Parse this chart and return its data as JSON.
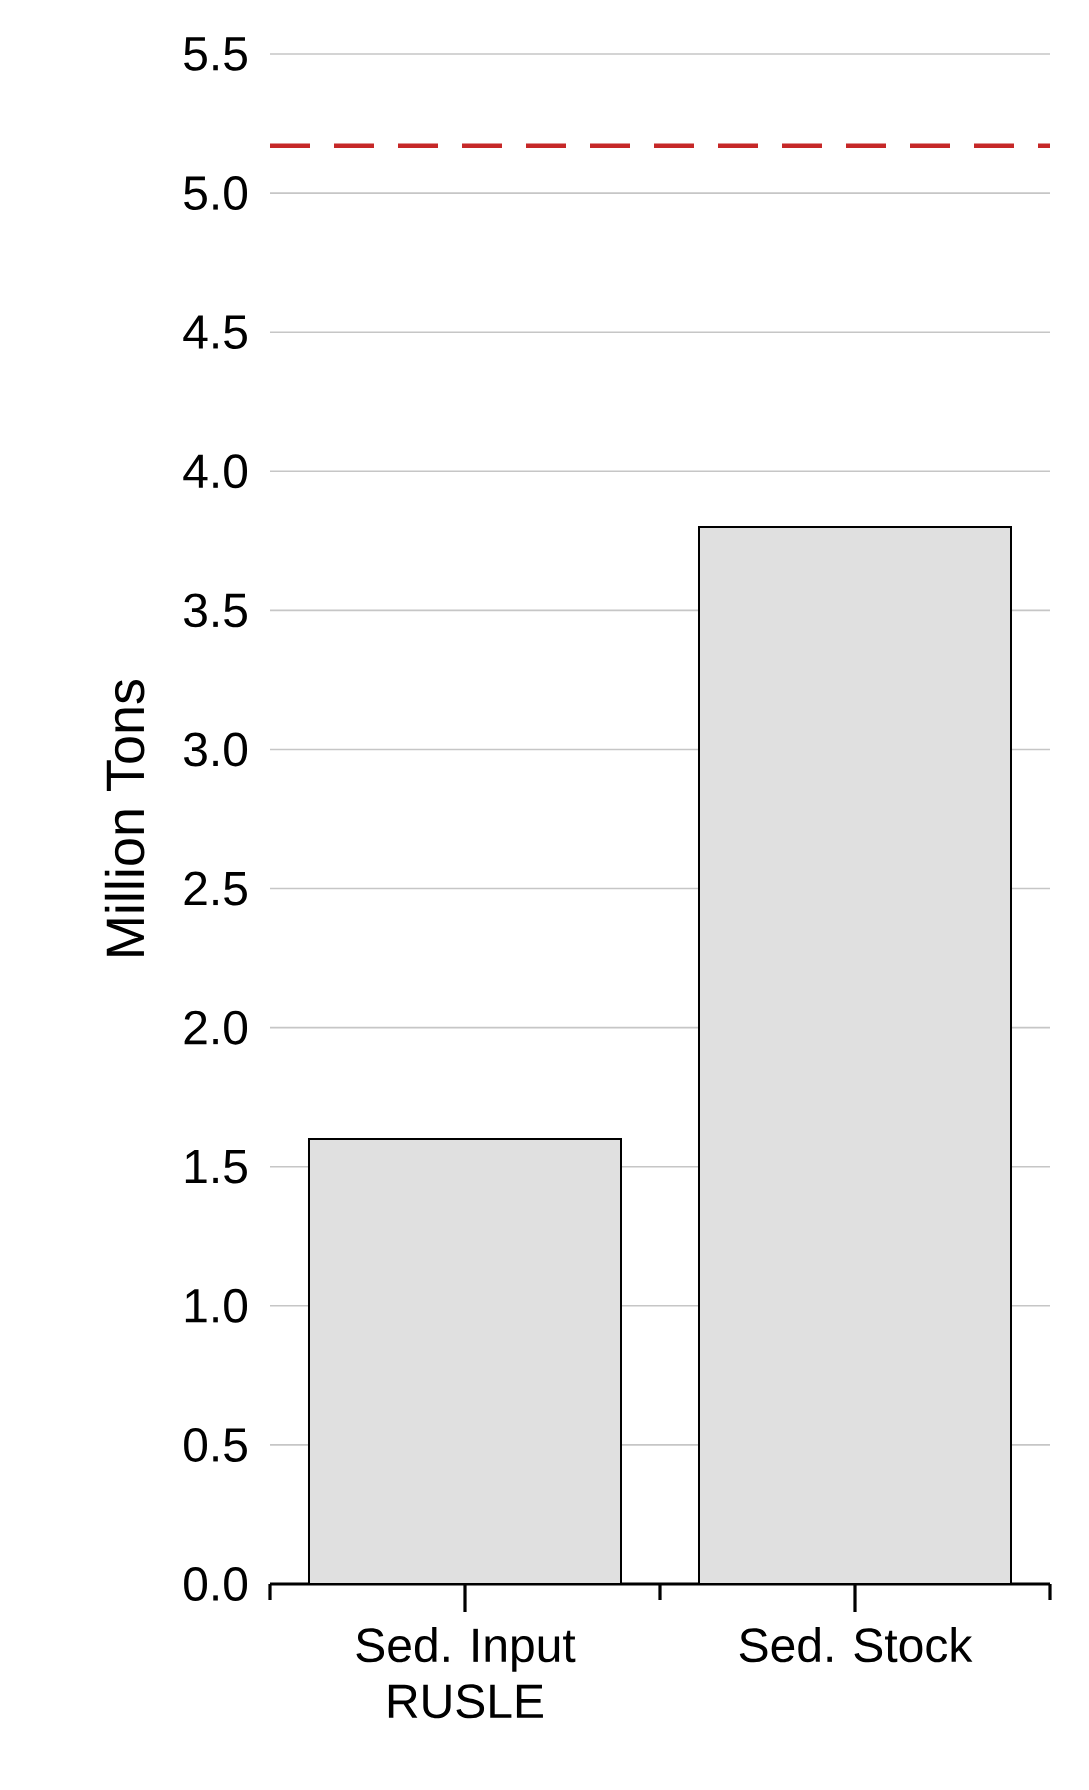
{
  "chart_data": {
    "type": "bar",
    "ylabel": "Million Tons",
    "categories": [
      "Sed. Input RUSLE",
      "Sed. Stock"
    ],
    "values": [
      1.6,
      3.8
    ],
    "color": "#e0e0e0",
    "ylim": [
      0,
      5.5
    ],
    "yticks": [
      {
        "value": 0,
        "label": "0.0"
      },
      {
        "value": 0.5,
        "label": "0.5"
      },
      {
        "value": 1,
        "label": "1.0"
      },
      {
        "value": 1.5,
        "label": "1.5"
      },
      {
        "value": 2,
        "label": "2.0"
      },
      {
        "value": 2.5,
        "label": "2.5"
      },
      {
        "value": 3,
        "label": "3.0"
      },
      {
        "value": 3.5,
        "label": "3.5"
      },
      {
        "value": 4,
        "label": "4.0"
      },
      {
        "value": 4.5,
        "label": "4.5"
      },
      {
        "value": 5,
        "label": "5.0"
      },
      {
        "value": 5.5,
        "label": "5.5"
      }
    ],
    "grid": "y",
    "ref_lines": [
      {
        "axis": "y",
        "value": 5.17,
        "color": "#c62828",
        "line_style": "dashed"
      }
    ]
  }
}
